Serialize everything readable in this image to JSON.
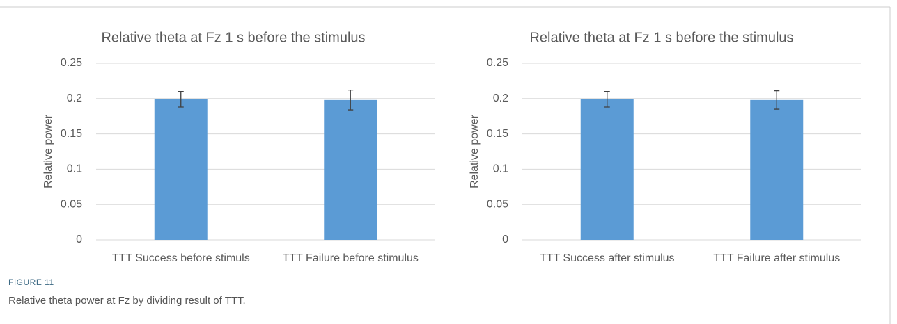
{
  "chart_data": [
    {
      "type": "bar",
      "title": "Relative theta at Fz 1 s before the stimulus",
      "y_label": "Relative power",
      "categories": [
        "TTT Success before stimuls",
        "TTT Failure before stimulus"
      ],
      "values": [
        0.199,
        0.198
      ],
      "errors": [
        0.011,
        0.014
      ],
      "color": "#5b9bd5",
      "ylim": [
        0,
        0.25
      ],
      "yticks": [
        0,
        0.05,
        0.1,
        0.15,
        0.2,
        0.25
      ],
      "grid": true
    },
    {
      "type": "bar",
      "title": "Relative theta at Fz 1 s before the stimulus",
      "y_label": "Relative power",
      "categories": [
        "TTT Success after stimulus",
        "TTT Failure after stimulus"
      ],
      "values": [
        0.199,
        0.198
      ],
      "errors": [
        0.011,
        0.013
      ],
      "color": "#5b9bd5",
      "ylim": [
        0,
        0.25
      ],
      "yticks": [
        0,
        0.05,
        0.1,
        0.15,
        0.2,
        0.25
      ],
      "grid": true
    }
  ],
  "figure": {
    "label": "FIGURE 11",
    "caption": "Relative theta power at Fz by dividing result of TTT."
  }
}
